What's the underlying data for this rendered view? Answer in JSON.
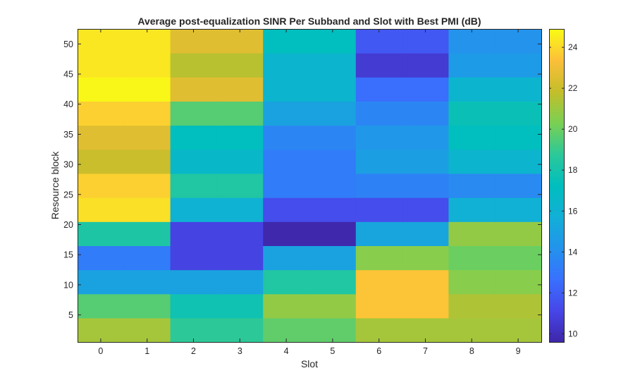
{
  "chart_data": {
    "type": "heatmap",
    "title": "Average post-equalization SINR Per Subband and Slot with Best PMI (dB)",
    "xlabel": "Slot",
    "ylabel": "Resource block",
    "x_ticks": [
      0,
      1,
      2,
      3,
      4,
      5,
      6,
      7,
      8,
      9
    ],
    "y_ticks": [
      5,
      10,
      15,
      20,
      25,
      30,
      35,
      40,
      45,
      50
    ],
    "x_range": [
      -0.5,
      9.5
    ],
    "y_range": [
      0.5,
      52.5
    ],
    "colorbar": {
      "range": [
        9.6,
        24.9
      ],
      "ticks": [
        10,
        12,
        14,
        16,
        18,
        20,
        22,
        24
      ],
      "colormap": "parula"
    },
    "cells": [
      {
        "slot_start": 0,
        "slot_end": 1,
        "rb_start": 1,
        "rb_end": 4,
        "values": [
          21.2,
          21.2,
          18.8,
          18.8,
          19.8,
          19.8,
          21.2,
          21.2,
          21.2,
          21.2
        ]
      },
      {
        "slot_start": 0,
        "slot_end": 1,
        "rb_start": 5,
        "rb_end": 8,
        "values": [
          19.6,
          19.6,
          17.8,
          17.8,
          20.8,
          20.8,
          23.5,
          23.5,
          21.4,
          21.4
        ]
      },
      {
        "slot_start": 0,
        "slot_end": 1,
        "rb_start": 9,
        "rb_end": 12,
        "values": [
          15.0,
          15.0,
          15.0,
          15.0,
          18.4,
          18.4,
          23.5,
          23.5,
          20.6,
          20.6
        ]
      },
      {
        "slot_start": 0,
        "slot_end": 1,
        "rb_start": 13,
        "rb_end": 16,
        "values": [
          13.2,
          13.2,
          11.0,
          11.0,
          15.0,
          15.0,
          20.6,
          20.6,
          20.0,
          20.0
        ]
      },
      {
        "slot_start": 0,
        "slot_end": 1,
        "rb_start": 17,
        "rb_end": 20,
        "values": [
          18.3,
          18.3,
          11.0,
          11.0,
          9.7,
          9.7,
          15.2,
          15.2,
          20.8,
          20.8
        ]
      },
      {
        "slot_start": 0,
        "slot_end": 1,
        "rb_start": 21,
        "rb_end": 24,
        "values": [
          24.2,
          24.2,
          16.0,
          16.0,
          11.4,
          11.4,
          11.4,
          11.4,
          15.8,
          15.8
        ]
      },
      {
        "slot_start": 0,
        "slot_end": 1,
        "rb_start": 25,
        "rb_end": 28,
        "values": [
          23.8,
          23.8,
          18.4,
          18.4,
          13.2,
          13.2,
          13.4,
          13.4,
          13.8,
          13.8
        ]
      },
      {
        "slot_start": 0,
        "slot_end": 1,
        "rb_start": 29,
        "rb_end": 32,
        "values": [
          22.0,
          22.0,
          16.6,
          16.6,
          13.2,
          13.2,
          14.8,
          14.8,
          16.2,
          16.2
        ]
      },
      {
        "slot_start": 0,
        "slot_end": 1,
        "rb_start": 33,
        "rb_end": 36,
        "values": [
          22.6,
          22.6,
          17.2,
          17.2,
          13.6,
          13.6,
          14.4,
          14.4,
          17.2,
          17.2
        ]
      },
      {
        "slot_start": 0,
        "slot_end": 1,
        "rb_start": 37,
        "rb_end": 40,
        "values": [
          23.8,
          23.8,
          19.6,
          19.6,
          15.0,
          15.0,
          13.6,
          13.6,
          17.6,
          17.6
        ]
      },
      {
        "slot_start": 0,
        "slot_end": 1,
        "rb_start": 41,
        "rb_end": 44,
        "values": [
          24.8,
          24.8,
          22.6,
          22.6,
          16.2,
          16.2,
          12.6,
          12.6,
          16.2,
          16.2
        ]
      },
      {
        "slot_start": 0,
        "slot_end": 1,
        "rb_start": 45,
        "rb_end": 48,
        "values": [
          24.4,
          24.4,
          21.6,
          21.6,
          16.2,
          16.2,
          10.6,
          10.6,
          14.6,
          14.6
        ]
      },
      {
        "slot_start": 0,
        "slot_end": 1,
        "rb_start": 49,
        "rb_end": 52,
        "values": [
          24.4,
          24.4,
          22.6,
          22.6,
          17.2,
          17.2,
          11.8,
          11.8,
          14.2,
          14.2
        ]
      }
    ],
    "grid": false
  }
}
